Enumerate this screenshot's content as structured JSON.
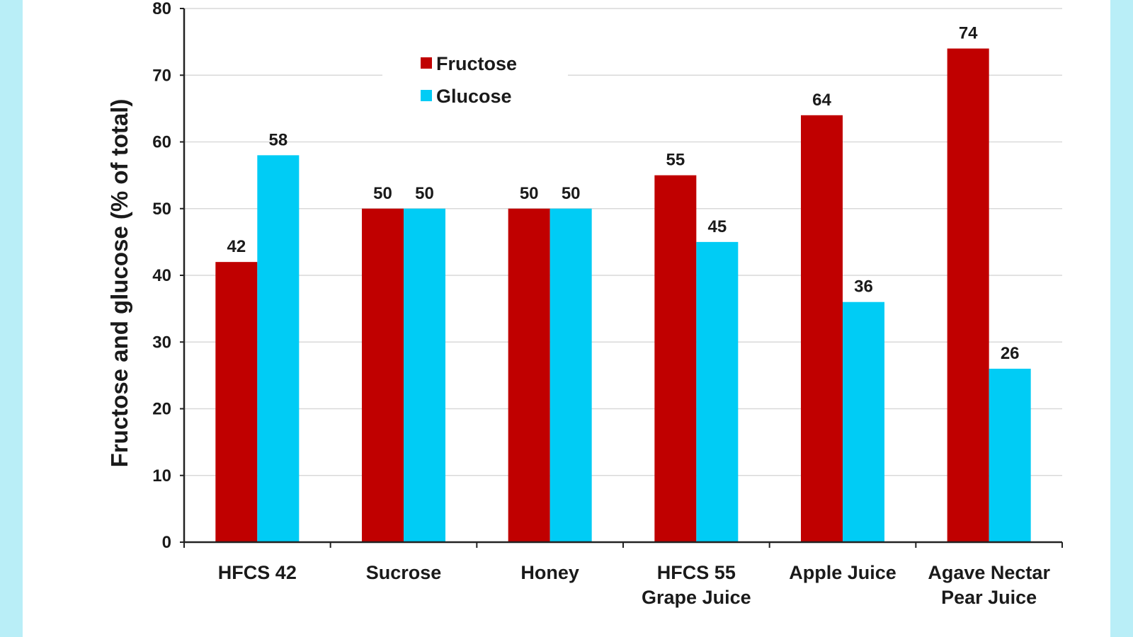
{
  "chart_data": {
    "type": "bar",
    "categories": [
      [
        "HFCS 42"
      ],
      [
        "Sucrose"
      ],
      [
        "Honey"
      ],
      [
        "HFCS 55",
        "Grape Juice"
      ],
      [
        "Apple Juice"
      ],
      [
        "Agave Nectar",
        "Pear Juice"
      ]
    ],
    "series": [
      {
        "name": "Fructose",
        "color": "#c00000",
        "values": [
          42,
          50,
          50,
          55,
          64,
          74
        ]
      },
      {
        "name": "Glucose",
        "color": "#00ccf5",
        "values": [
          58,
          50,
          50,
          45,
          36,
          26
        ]
      }
    ],
    "ylabel": "Fructose and glucose (% of total)",
    "ylim": [
      0,
      80
    ],
    "yticks": [
      0,
      10,
      20,
      30,
      40,
      50,
      60,
      70,
      80
    ],
    "grid": true,
    "legend": "top-left",
    "data_labels": true
  }
}
